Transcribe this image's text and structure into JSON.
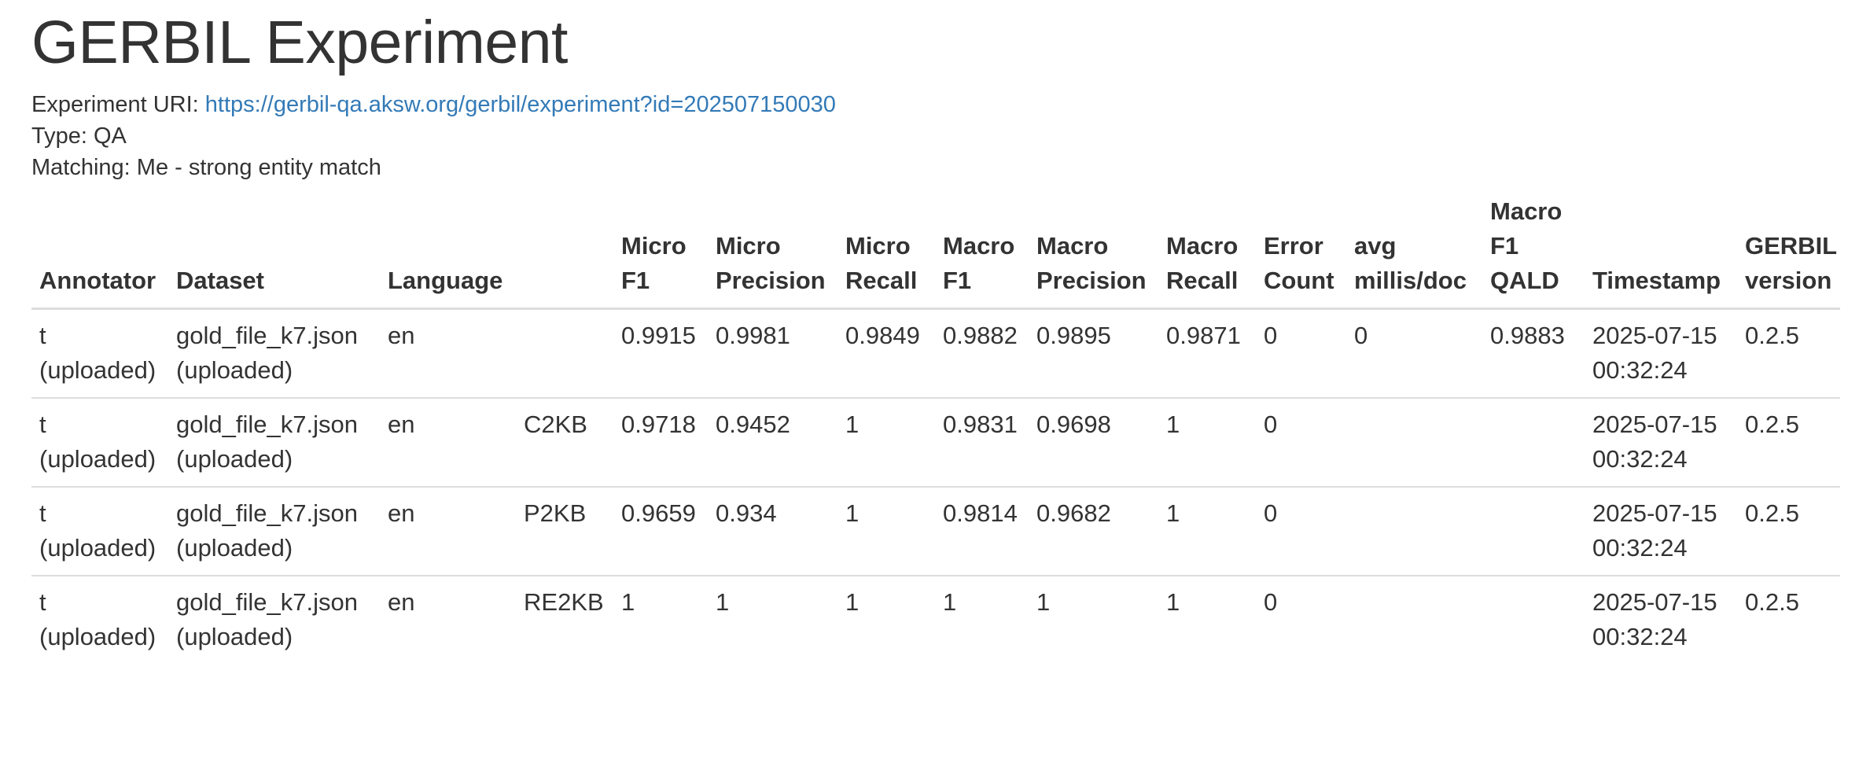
{
  "page_title": "GERBIL Experiment",
  "experiment_uri_label": "Experiment URI: ",
  "experiment_uri": "https://gerbil-qa.aksw.org/gerbil/experiment?id=202507150030",
  "type_line": "Type: QA",
  "matching_line": "Matching: Me - strong entity match",
  "table": {
    "headers": [
      "Annotator",
      "Dataset",
      "Language",
      "",
      "Micro F1",
      "Micro Precision",
      "Micro Recall",
      "Macro F1",
      "Macro Precision",
      "Macro Recall",
      "Error Count",
      "avg millis/doc",
      "Macro F1 QALD",
      "Timestamp",
      "GERBIL version"
    ],
    "rows": [
      [
        "t (uploaded)",
        "gold_file_k7.json (uploaded)",
        "en",
        "",
        "0.9915",
        "0.9981",
        "0.9849",
        "0.9882",
        "0.9895",
        "0.9871",
        "0",
        "0",
        "0.9883",
        "2025-07-15 00:32:24",
        "0.2.5"
      ],
      [
        "t (uploaded)",
        "gold_file_k7.json (uploaded)",
        "en",
        "C2KB",
        "0.9718",
        "0.9452",
        "1",
        "0.9831",
        "0.9698",
        "1",
        "0",
        "",
        "",
        "2025-07-15 00:32:24",
        "0.2.5"
      ],
      [
        "t (uploaded)",
        "gold_file_k7.json (uploaded)",
        "en",
        "P2KB",
        "0.9659",
        "0.934",
        "1",
        "0.9814",
        "0.9682",
        "1",
        "0",
        "",
        "",
        "2025-07-15 00:32:24",
        "0.2.5"
      ],
      [
        "t (uploaded)",
        "gold_file_k7.json (uploaded)",
        "en",
        "RE2KB",
        "1",
        "1",
        "1",
        "1",
        "1",
        "1",
        "0",
        "",
        "",
        "2025-07-15 00:32:24",
        "0.2.5"
      ]
    ]
  }
}
